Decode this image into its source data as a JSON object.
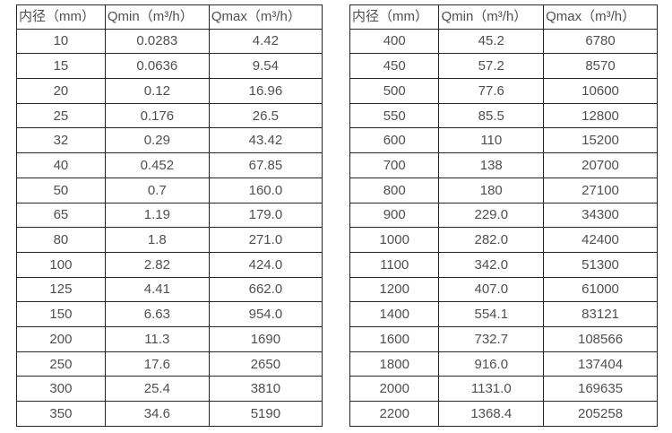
{
  "colors": {
    "background": "#ffffff",
    "border": "#262626",
    "text": "#4f4f4f"
  },
  "tables": [
    {
      "name": "small-diameter-flow-table",
      "headers": [
        "内径（mm）",
        "Qmin（m³/h）",
        "Qmax（m³/h）"
      ],
      "rows": [
        [
          "10",
          "0.0283",
          "4.42"
        ],
        [
          "15",
          "0.0636",
          "9.54"
        ],
        [
          "20",
          "0.12",
          "16.96"
        ],
        [
          "25",
          "0.176",
          "26.5"
        ],
        [
          "32",
          "0.29",
          "43.42"
        ],
        [
          "40",
          "0.452",
          "67.85"
        ],
        [
          "50",
          "0.7",
          "160.0"
        ],
        [
          "65",
          "1.19",
          "179.0"
        ],
        [
          "80",
          "1.8",
          "271.0"
        ],
        [
          "100",
          "2.82",
          "424.0"
        ],
        [
          "125",
          "4.41",
          "662.0"
        ],
        [
          "150",
          "6.63",
          "954.0"
        ],
        [
          "200",
          "11.3",
          "1690"
        ],
        [
          "250",
          "17.6",
          "2650"
        ],
        [
          "300",
          "25.4",
          "3810"
        ],
        [
          "350",
          "34.6",
          "5190"
        ]
      ]
    },
    {
      "name": "large-diameter-flow-table",
      "headers": [
        "内径（mm）",
        "Qmin（m³/h）",
        "Qmax（m³/h）"
      ],
      "rows": [
        [
          "400",
          "45.2",
          "6780"
        ],
        [
          "450",
          "57.2",
          "8570"
        ],
        [
          "500",
          "77.6",
          "10600"
        ],
        [
          "550",
          "85.5",
          "12800"
        ],
        [
          "600",
          "110",
          "15200"
        ],
        [
          "700",
          "138",
          "20700"
        ],
        [
          "800",
          "180",
          "27100"
        ],
        [
          "900",
          "229.0",
          "34300"
        ],
        [
          "1000",
          "282.0",
          "42400"
        ],
        [
          "1100",
          "342.0",
          "51300"
        ],
        [
          "1200",
          "407.0",
          "61000"
        ],
        [
          "1400",
          "554.1",
          "83121"
        ],
        [
          "1600",
          "732.7",
          "108566"
        ],
        [
          "1800",
          "916.0",
          "137404"
        ],
        [
          "2000",
          "1131.0",
          "169635"
        ],
        [
          "2200",
          "1368.4",
          "205258"
        ]
      ]
    }
  ]
}
